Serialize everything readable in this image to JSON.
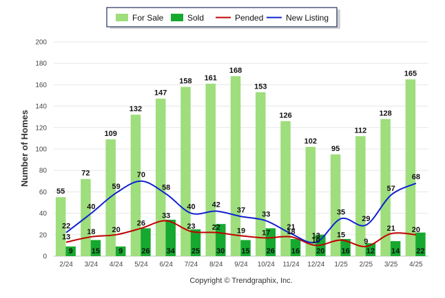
{
  "chart_data": {
    "type": "bar",
    "ylabel": "Number of Homes",
    "xlabel": "",
    "ylim": [
      0,
      200
    ],
    "yticks": [
      0,
      20,
      40,
      60,
      80,
      100,
      120,
      140,
      160,
      180,
      200
    ],
    "grid": true,
    "legend_position": "top-center",
    "categories": [
      "2/24",
      "3/24",
      "4/24",
      "5/24",
      "6/24",
      "7/24",
      "8/24",
      "9/24",
      "10/24",
      "11/24",
      "12/24",
      "1/25",
      "2/25",
      "3/25",
      "4/25"
    ],
    "series": [
      {
        "name": "For Sale",
        "kind": "bar",
        "color": "#9ede7c",
        "values": [
          55,
          72,
          109,
          132,
          147,
          158,
          161,
          168,
          153,
          126,
          102,
          95,
          112,
          128,
          165
        ]
      },
      {
        "name": "Sold",
        "kind": "bar",
        "color": "#16a92f",
        "values": [
          9,
          15,
          9,
          26,
          34,
          25,
          30,
          15,
          26,
          16,
          20,
          16,
          12,
          14,
          22
        ]
      },
      {
        "name": "Pended",
        "kind": "line",
        "color": "#c00000",
        "values": [
          13,
          18,
          20,
          26,
          33,
          23,
          22,
          19,
          17,
          18,
          10,
          15,
          9,
          21,
          20
        ]
      },
      {
        "name": "New Listing",
        "kind": "line",
        "color": "#1020d0",
        "values": [
          22,
          40,
          59,
          70,
          58,
          40,
          42,
          37,
          33,
          21,
          13,
          35,
          29,
          57,
          68
        ]
      }
    ]
  },
  "footer": {
    "copyright": "Copyright © Trendgraphix, Inc."
  }
}
